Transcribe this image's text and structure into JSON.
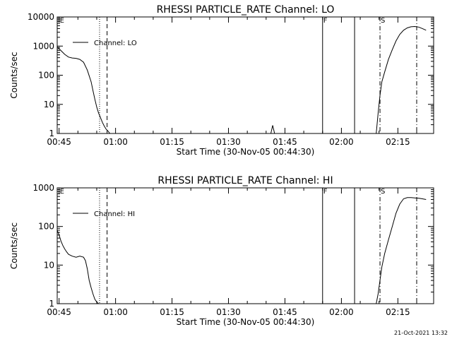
{
  "chart_data": [
    {
      "type": "line",
      "title": "RHESSI PARTICLE_RATE Channel: LO",
      "xlabel": "Start Time (30-Nov-05 00:44:30)",
      "ylabel": "Counts/sec",
      "yscale": "log",
      "xlim": [
        "00:44:30",
        "02:24:30"
      ],
      "ylim": [
        1,
        10000
      ],
      "x_ticks": [
        "00:45",
        "01:00",
        "01:15",
        "01:30",
        "01:45",
        "02:00",
        "02:15"
      ],
      "y_ticks": [
        "1",
        "10",
        "100",
        "1000",
        "10000"
      ],
      "legend": "top-left",
      "legend_entries": [
        "Channel: LO"
      ],
      "series": [
        {
          "name": "Channel: LO",
          "x": [
            "00:44:30",
            "00:45:30",
            "00:46:30",
            "00:47:30",
            "00:48:30",
            "00:49:30",
            "00:50:30",
            "00:51:30",
            "00:52:30",
            "00:53:30",
            "00:54:00",
            "00:54:30",
            "00:55:00",
            "00:55:30",
            "00:56:00",
            "00:56:30",
            "00:57:00",
            "00:57:30",
            "00:58:00",
            "00:58:30"
          ],
          "y": [
            950,
            700,
            520,
            420,
            390,
            380,
            350,
            280,
            150,
            60,
            30,
            15,
            8,
            5,
            3.5,
            2.4,
            1.8,
            1.4,
            1.2,
            1
          ]
        },
        {
          "name": "Channel: LO",
          "x": [
            "01:41:15",
            "01:41:45",
            "01:42:15"
          ],
          "y": [
            1,
            1.9,
            1
          ]
        },
        {
          "name": "Channel: LO",
          "x": [
            "02:09:15",
            "02:09:45",
            "02:10:15",
            "02:10:45",
            "02:11:30",
            "02:12:30",
            "02:13:30",
            "02:14:30",
            "02:15:30",
            "02:16:30",
            "02:17:30",
            "02:18:30",
            "02:19:30",
            "02:20:30",
            "02:21:30",
            "02:22:30"
          ],
          "y": [
            1,
            5,
            20,
            60,
            130,
            350,
            750,
            1500,
            2500,
            3500,
            4200,
            4600,
            4700,
            4500,
            4000,
            3500
          ]
        }
      ],
      "markers": [
        {
          "label": "E",
          "time": "00:45:00",
          "style": "text"
        },
        {
          "label": "",
          "time": "00:55:45",
          "style": "dotted"
        },
        {
          "label": "",
          "time": "00:57:45",
          "style": "dashed"
        },
        {
          "label": "F",
          "time": "01:55:00",
          "style": "solid"
        },
        {
          "label": "",
          "time": "02:03:30",
          "style": "solid"
        },
        {
          "label": "S",
          "time": "02:10:15",
          "style": "dashdot"
        },
        {
          "label": "",
          "time": "02:20:00",
          "style": "dashdot"
        }
      ]
    },
    {
      "type": "line",
      "title": "RHESSI PARTICLE_RATE Channel: HI",
      "xlabel": "Start Time (30-Nov-05 00:44:30)",
      "ylabel": "Counts/sec",
      "yscale": "log",
      "xlim": [
        "00:44:30",
        "02:24:30"
      ],
      "ylim": [
        1,
        1000
      ],
      "x_ticks": [
        "00:45",
        "01:00",
        "01:15",
        "01:30",
        "01:45",
        "02:00",
        "02:15"
      ],
      "y_ticks": [
        "1",
        "10",
        "100",
        "1000"
      ],
      "legend": "top-left",
      "legend_entries": [
        "Channel: HI"
      ],
      "series": [
        {
          "name": "Channel: HI",
          "x": [
            "00:44:30",
            "00:45:00",
            "00:45:30",
            "00:46:00",
            "00:46:30",
            "00:47:00",
            "00:47:30",
            "00:48:30",
            "00:49:30",
            "00:50:30",
            "00:51:30",
            "00:52:00",
            "00:52:30",
            "00:53:00",
            "00:53:30",
            "00:54:00",
            "00:54:30",
            "00:55:00",
            "00:55:30"
          ],
          "y": [
            80,
            60,
            42,
            32,
            26,
            22,
            19,
            17,
            16,
            17,
            16,
            13,
            8,
            4,
            2.6,
            1.8,
            1.3,
            1.1,
            1
          ]
        },
        {
          "name": "Channel: HI",
          "x": [
            "02:09:15",
            "02:09:45",
            "02:10:15",
            "02:10:45",
            "02:11:30",
            "02:12:30",
            "02:13:30",
            "02:14:30",
            "02:15:30",
            "02:16:30",
            "02:17:30",
            "02:18:30",
            "02:19:30",
            "02:20:30",
            "02:21:30",
            "02:22:30"
          ],
          "y": [
            1,
            1.8,
            4,
            9,
            20,
            45,
            100,
            220,
            380,
            520,
            560,
            560,
            550,
            540,
            520,
            500
          ]
        }
      ],
      "markers": [
        {
          "label": "E",
          "time": "00:45:00",
          "style": "text"
        },
        {
          "label": "",
          "time": "00:55:45",
          "style": "dotted"
        },
        {
          "label": "",
          "time": "00:57:45",
          "style": "dashed"
        },
        {
          "label": "F",
          "time": "01:55:00",
          "style": "solid"
        },
        {
          "label": "",
          "time": "02:03:30",
          "style": "solid"
        },
        {
          "label": "S",
          "time": "02:10:15",
          "style": "dashdot"
        },
        {
          "label": "",
          "time": "02:20:00",
          "style": "dashdot"
        }
      ]
    }
  ],
  "footer": {
    "timestamp": "21-Oct-2021 13:32"
  }
}
